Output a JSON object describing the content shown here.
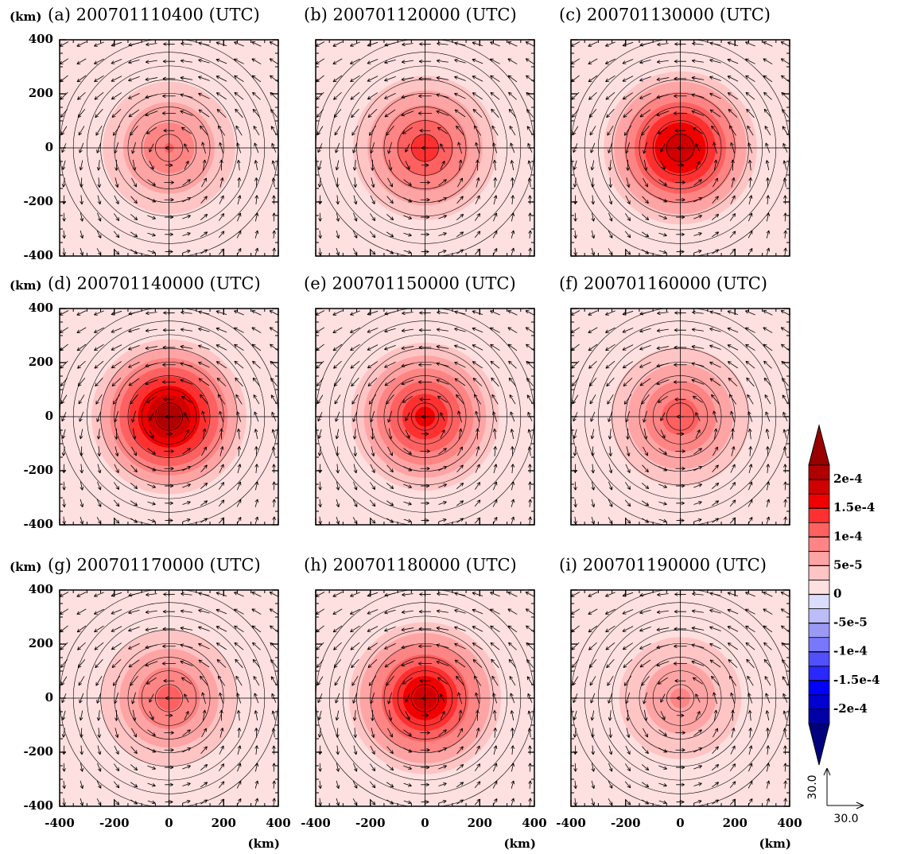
{
  "chart_data": [
    {
      "type": "contour",
      "title": "(a) 200701110400 (UTC)",
      "ylabel": "(km)",
      "xlim": [
        -400,
        400
      ],
      "ylim": [
        -400,
        400
      ],
      "xticks": [
        -400,
        -200,
        0,
        200,
        400
      ],
      "yticks": [
        -400,
        -200,
        0,
        200,
        400
      ],
      "peak": 0.0001
    },
    {
      "type": "contour",
      "title": "(b) 200701120000 (UTC)",
      "xlim": [
        -400,
        400
      ],
      "ylim": [
        -400,
        400
      ],
      "xticks": [
        -400,
        -200,
        0,
        200,
        400
      ],
      "yticks": [
        -400,
        -200,
        0,
        200,
        400
      ],
      "peak": 0.00014
    },
    {
      "type": "contour",
      "title": "(c) 200701130000 (UTC)",
      "xlim": [
        -400,
        400
      ],
      "ylim": [
        -400,
        400
      ],
      "xticks": [
        -400,
        -200,
        0,
        200,
        400
      ],
      "yticks": [
        -400,
        -200,
        0,
        200,
        400
      ],
      "peak": 0.0002
    },
    {
      "type": "contour",
      "title": "(d) 200701140000 (UTC)",
      "ylabel": "(km)",
      "xlim": [
        -400,
        400
      ],
      "ylim": [
        -400,
        400
      ],
      "xticks": [
        -400,
        -200,
        0,
        200,
        400
      ],
      "yticks": [
        -400,
        -200,
        0,
        200,
        400
      ],
      "peak": 0.00022
    },
    {
      "type": "contour",
      "title": "(e) 200701150000 (UTC)",
      "xlim": [
        -400,
        400
      ],
      "ylim": [
        -400,
        400
      ],
      "xticks": [
        -400,
        -200,
        0,
        200,
        400
      ],
      "yticks": [
        -400,
        -200,
        0,
        200,
        400
      ],
      "peak": 0.00016
    },
    {
      "type": "contour",
      "title": "(f) 200701160000 (UTC)",
      "xlim": [
        -400,
        400
      ],
      "ylim": [
        -400,
        400
      ],
      "xticks": [
        -400,
        -200,
        0,
        200,
        400
      ],
      "yticks": [
        -400,
        -200,
        0,
        200,
        400
      ],
      "peak": 0.00012
    },
    {
      "type": "contour",
      "title": "(g) 200701170000 (UTC)",
      "ylabel": "(km)",
      "xlabel": "(km)",
      "xlim": [
        -400,
        400
      ],
      "ylim": [
        -400,
        400
      ],
      "xticks": [
        -400,
        -200,
        0,
        200,
        400
      ],
      "yticks": [
        -400,
        -200,
        0,
        200,
        400
      ],
      "peak": 0.00011
    },
    {
      "type": "contour",
      "title": "(h) 200701180000 (UTC)",
      "xlabel": "(km)",
      "xlim": [
        -400,
        400
      ],
      "ylim": [
        -400,
        400
      ],
      "xticks": [
        -400,
        -200,
        0,
        200,
        400
      ],
      "yticks": [
        -400,
        -200,
        0,
        200,
        400
      ],
      "peak": 0.00019
    },
    {
      "type": "contour",
      "title": "(i) 200701190000 (UTC)",
      "xlabel": "(km)",
      "xlim": [
        -400,
        400
      ],
      "ylim": [
        -400,
        400
      ],
      "xticks": [
        -400,
        -200,
        0,
        200,
        400
      ],
      "yticks": [
        -400,
        -200,
        0,
        200,
        400
      ],
      "peak": 8e-05
    },
    {
      "type": "colorbar",
      "ylim": [
        -0.000225,
        0.000225
      ],
      "yticks": [
        {
          "value": -0.0002,
          "label": "-2e-4"
        },
        {
          "value": -0.00015,
          "label": "-1.5e-4"
        },
        {
          "value": -0.0001,
          "label": "-1e-4"
        },
        {
          "value": -5e-05,
          "label": "-5e-5"
        },
        0,
        {
          "value": 5e-05,
          "label": "5e-5"
        },
        {
          "value": 0.0001,
          "label": "1e-4"
        },
        {
          "value": 0.00015,
          "label": "1.5e-4"
        },
        {
          "value": 0.0002,
          "label": "2e-4"
        }
      ],
      "colors": [
        "#00007f",
        "#0000a8",
        "#0000d0",
        "#0000ff",
        "#2828ff",
        "#5050ff",
        "#7878ff",
        "#9a9af5",
        "#bcbcf8",
        "#dcdcfc",
        "#ffe0e0",
        "#ffc4c4",
        "#ffa4a4",
        "#ff8484",
        "#ff6060",
        "#ff3030",
        "#f00000",
        "#d00000",
        "#b00000",
        "#990000"
      ]
    },
    {
      "type": "vector-key",
      "x_label": "30.0",
      "y_label": "30.0"
    }
  ]
}
